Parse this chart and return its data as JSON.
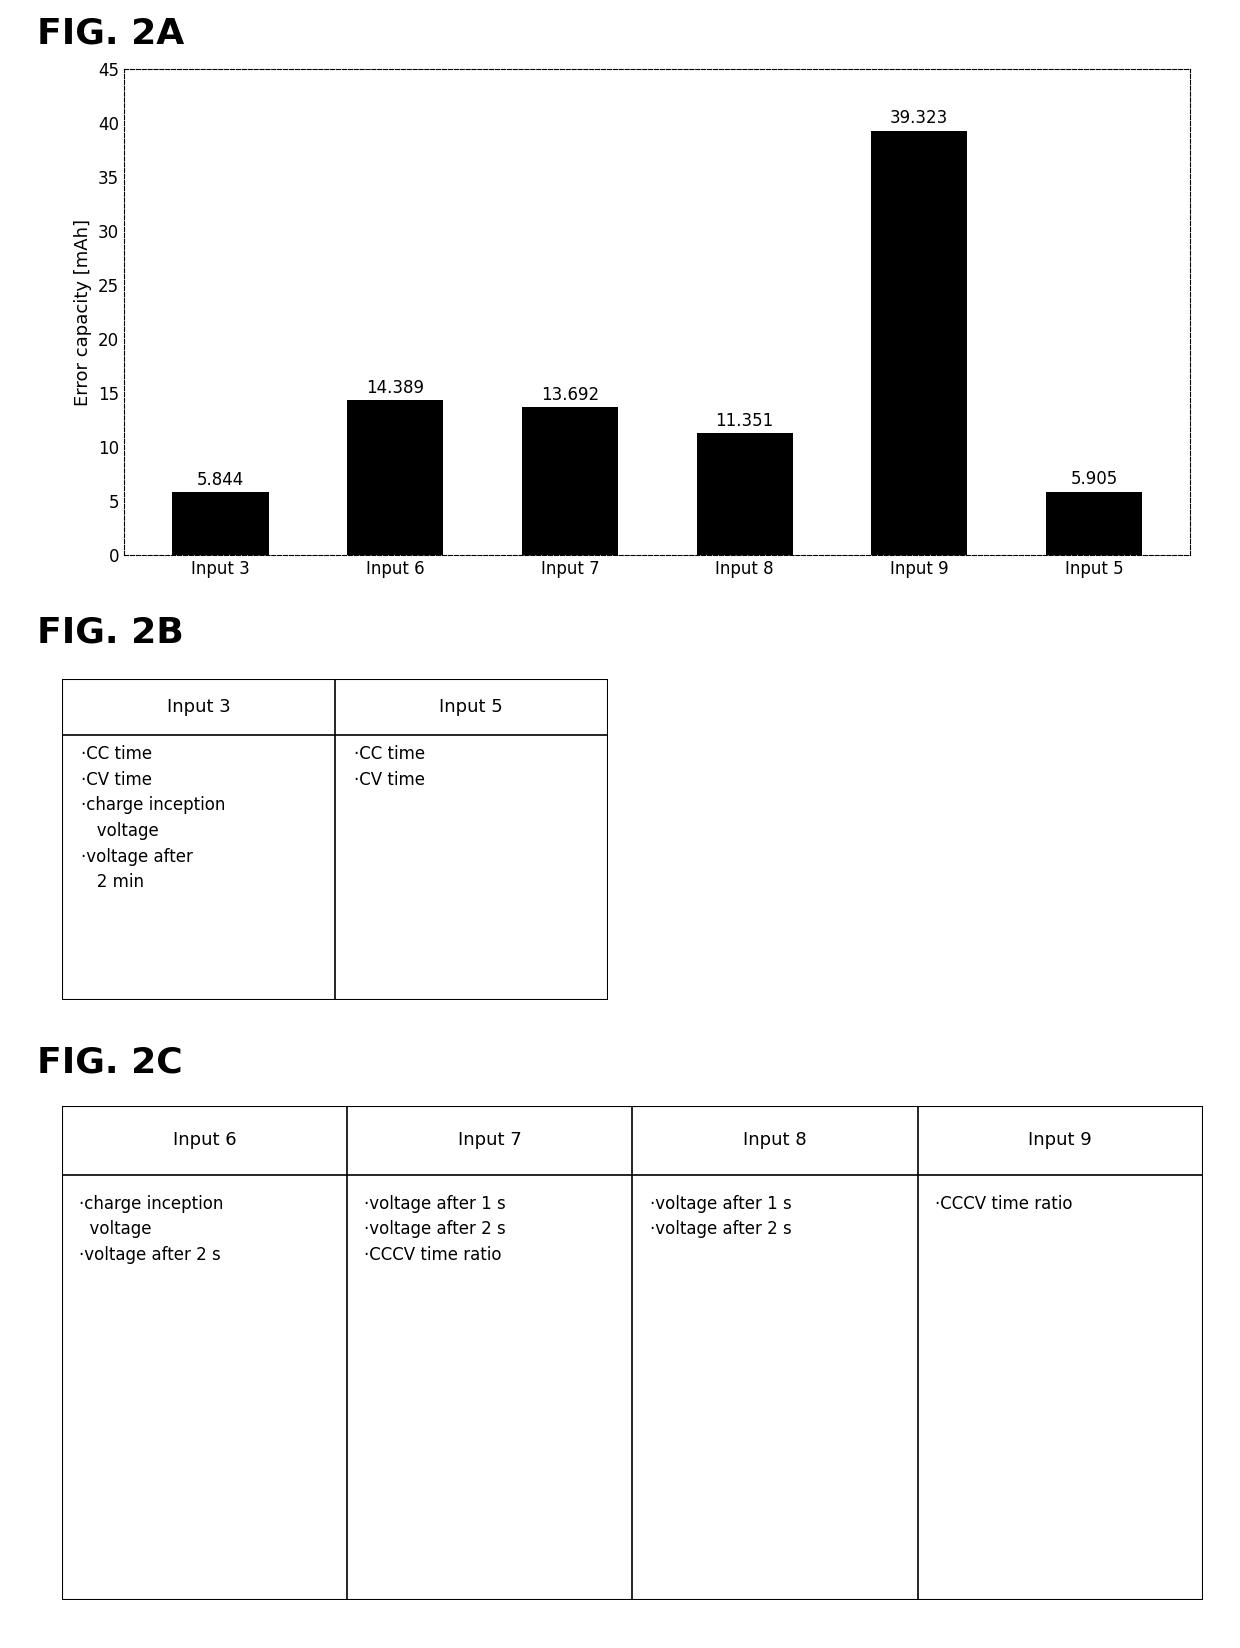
{
  "fig2a_title": "FIG. 2A",
  "fig2b_title": "FIG. 2B",
  "fig2c_title": "FIG. 2C",
  "bar_categories": [
    "Input 3",
    "Input 6",
    "Input 7",
    "Input 8",
    "Input 9",
    "Input 5"
  ],
  "bar_values": [
    5.844,
    14.389,
    13.692,
    11.351,
    39.323,
    5.905
  ],
  "bar_color": "#000000",
  "ylabel": "Error capacity [mAh]",
  "ylim": [
    0,
    45
  ],
  "yticks": [
    0,
    5,
    10,
    15,
    20,
    25,
    30,
    35,
    40,
    45
  ],
  "bar_labels": [
    "5.844",
    "14.389",
    "13.692",
    "11.351",
    "39.323",
    "5.905"
  ],
  "table2b_headers": [
    "Input 3",
    "Input 5"
  ],
  "table2c_headers": [
    "Input 6",
    "Input 7",
    "Input 8",
    "Input 9"
  ],
  "bg_color": "#ffffff",
  "text_color": "#000000",
  "title_fontsize": 26,
  "axis_fontsize": 13,
  "bar_label_fontsize": 12,
  "tick_fontsize": 12,
  "table_header_fontsize": 13,
  "table_cell_fontsize": 12
}
